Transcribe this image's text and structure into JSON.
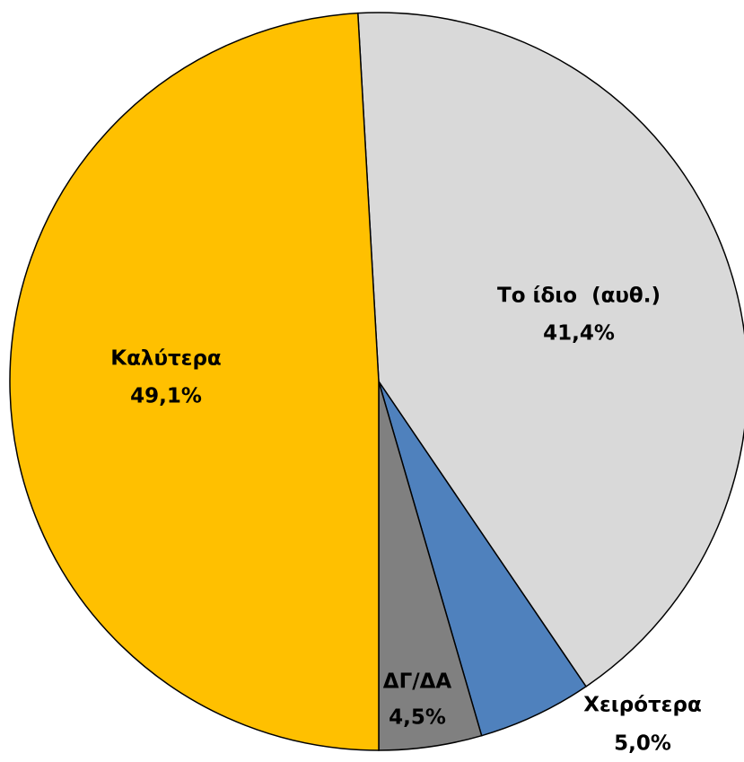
{
  "chart_data": {
    "type": "pie",
    "categories": [
      "Το ίδιο  (αυθ.)",
      "Χειρότερα",
      "ΔΓ/ΔΑ",
      "Καλύτερα"
    ],
    "values": [
      41.4,
      5.0,
      4.5,
      49.1
    ],
    "value_labels": [
      "41,4%",
      "5,0%",
      "4,5%",
      "49,1%"
    ],
    "colors": [
      "#d9d9d9",
      "#4f81bd",
      "#808080",
      "#ffc000"
    ]
  }
}
